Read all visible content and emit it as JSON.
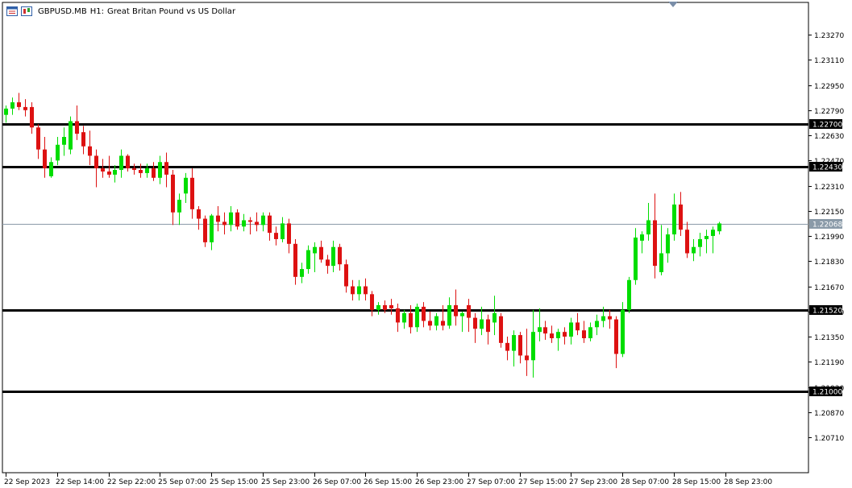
{
  "header": {
    "symbol": "GBPUSD.MB",
    "timeframe": "H1:",
    "description": "Great Britan Pound vs US Dollar"
  },
  "chart_data": {
    "type": "candlestick",
    "ylim": [
      1.2049,
      1.2347
    ],
    "y_ticks": [
      "1.23270",
      "1.23110",
      "1.22950",
      "1.22790",
      "1.22630",
      "1.22470",
      "1.22310",
      "1.22150",
      "1.21990",
      "1.21830",
      "1.21670",
      "1.21510",
      "1.21350",
      "1.21190",
      "1.21030",
      "1.20870",
      "1.20710"
    ],
    "x_tick_labels": [
      "22 Sep 2023",
      "22 Sep 14:00",
      "22 Sep 22:00",
      "25 Sep 07:00",
      "25 Sep 15:00",
      "25 Sep 23:00",
      "26 Sep 07:00",
      "26 Sep 15:00",
      "26 Sep 23:00",
      "27 Sep 07:00",
      "27 Sep 15:00",
      "27 Sep 23:00",
      "28 Sep 07:00",
      "28 Sep 15:00",
      "28 Sep 23:00"
    ],
    "horizontal_levels": [
      {
        "value": 1.227,
        "label": "1.22700",
        "style": "level"
      },
      {
        "value": 1.2243,
        "label": "1.22430",
        "style": "level"
      },
      {
        "value": 1.2152,
        "label": "1.21520",
        "style": "level"
      },
      {
        "value": 1.21,
        "label": "1.21000",
        "style": "level"
      },
      {
        "value": 1.22068,
        "label": "1.22068",
        "style": "bid"
      }
    ],
    "candles": [
      [
        1.2276,
        1.2282,
        1.2271,
        1.228
      ],
      [
        1.228,
        1.2287,
        1.2276,
        1.2284
      ],
      [
        1.2284,
        1.229,
        1.2279,
        1.2281
      ],
      [
        1.2281,
        1.2286,
        1.2275,
        1.2279
      ],
      [
        1.2281,
        1.2284,
        1.2264,
        1.2268
      ],
      [
        1.2268,
        1.227,
        1.2248,
        1.2254
      ],
      [
        1.2254,
        1.2262,
        1.2236,
        1.2242
      ],
      [
        1.2237,
        1.2249,
        1.2236,
        1.2246
      ],
      [
        1.2247,
        1.2262,
        1.2244,
        1.2257
      ],
      [
        1.2257,
        1.2268,
        1.225,
        1.2262
      ],
      [
        1.2254,
        1.2275,
        1.2251,
        1.2272
      ],
      [
        1.2272,
        1.2282,
        1.226,
        1.2264
      ],
      [
        1.2265,
        1.2269,
        1.2251,
        1.2256
      ],
      [
        1.2256,
        1.2266,
        1.2244,
        1.225
      ],
      [
        1.225,
        1.2254,
        1.223,
        1.2242
      ],
      [
        1.2242,
        1.2248,
        1.2236,
        1.224
      ],
      [
        1.224,
        1.225,
        1.2236,
        1.2238
      ],
      [
        1.2238,
        1.2244,
        1.2233,
        1.2241
      ],
      [
        1.2241,
        1.2254,
        1.2236,
        1.225
      ],
      [
        1.225,
        1.2251,
        1.224,
        1.2242
      ],
      [
        1.2242,
        1.2245,
        1.2238,
        1.2241
      ],
      [
        1.2241,
        1.2245,
        1.2236,
        1.2239
      ],
      [
        1.2239,
        1.2245,
        1.2236,
        1.2242
      ],
      [
        1.2242,
        1.2246,
        1.2234,
        1.2236
      ],
      [
        1.2236,
        1.225,
        1.2232,
        1.2246
      ],
      [
        1.2246,
        1.2252,
        1.223,
        1.2238
      ],
      [
        1.2238,
        1.2241,
        1.2206,
        1.2214
      ],
      [
        1.2214,
        1.2226,
        1.2206,
        1.2222
      ],
      [
        1.2226,
        1.2239,
        1.222,
        1.2236
      ],
      [
        1.2236,
        1.2242,
        1.221,
        1.2216
      ],
      [
        1.2216,
        1.2218,
        1.2203,
        1.221
      ],
      [
        1.221,
        1.2212,
        1.2192,
        1.2195
      ],
      [
        1.2195,
        1.2213,
        1.219,
        1.2212
      ],
      [
        1.2212,
        1.2218,
        1.2202,
        1.2208
      ],
      [
        1.2208,
        1.2214,
        1.22,
        1.2206
      ],
      [
        1.2206,
        1.2218,
        1.2202,
        1.2214
      ],
      [
        1.2214,
        1.2216,
        1.2203,
        1.2205
      ],
      [
        1.2205,
        1.2213,
        1.2202,
        1.2209
      ],
      [
        1.2209,
        1.2211,
        1.22,
        1.2208
      ],
      [
        1.2208,
        1.2214,
        1.2202,
        1.2206
      ],
      [
        1.2206,
        1.2214,
        1.2202,
        1.2212
      ],
      [
        1.2212,
        1.2214,
        1.2196,
        1.2201
      ],
      [
        1.2201,
        1.2205,
        1.2193,
        1.2197
      ],
      [
        1.2197,
        1.2211,
        1.2195,
        1.2207
      ],
      [
        1.2207,
        1.221,
        1.2188,
        1.2194
      ],
      [
        1.2194,
        1.2197,
        1.2168,
        1.2173
      ],
      [
        1.2173,
        1.2182,
        1.2169,
        1.2178
      ],
      [
        1.2178,
        1.2193,
        1.2175,
        1.219
      ],
      [
        1.2188,
        1.2195,
        1.2176,
        1.2192
      ],
      [
        1.2192,
        1.2196,
        1.2182,
        1.2184
      ],
      [
        1.2184,
        1.2187,
        1.2175,
        1.218
      ],
      [
        1.218,
        1.2196,
        1.2176,
        1.2192
      ],
      [
        1.2192,
        1.2194,
        1.2177,
        1.2181
      ],
      [
        1.2181,
        1.2184,
        1.2163,
        1.2167
      ],
      [
        1.2167,
        1.2171,
        1.2158,
        1.2162
      ],
      [
        1.2162,
        1.2171,
        1.2158,
        1.2167
      ],
      [
        1.2167,
        1.2172,
        1.2158,
        1.2162
      ],
      [
        1.2162,
        1.2164,
        1.2148,
        1.2152
      ],
      [
        1.2152,
        1.2157,
        1.2149,
        1.2155
      ],
      [
        1.2155,
        1.2158,
        1.215,
        1.2152
      ],
      [
        1.2155,
        1.2159,
        1.2149,
        1.2153
      ],
      [
        1.2153,
        1.2156,
        1.2138,
        1.2144
      ],
      [
        1.2144,
        1.2152,
        1.214,
        1.215
      ],
      [
        1.215,
        1.2155,
        1.2137,
        1.2141
      ],
      [
        1.2141,
        1.2156,
        1.2138,
        1.2154
      ],
      [
        1.2154,
        1.2157,
        1.2141,
        1.2145
      ],
      [
        1.2145,
        1.2151,
        1.2139,
        1.2142
      ],
      [
        1.2142,
        1.215,
        1.2139,
        1.2148
      ],
      [
        1.2145,
        1.2155,
        1.2139,
        1.2142
      ],
      [
        1.2142,
        1.216,
        1.214,
        1.2155
      ],
      [
        1.2155,
        1.2165,
        1.2142,
        1.2148
      ],
      [
        1.2148,
        1.2151,
        1.2138,
        1.215
      ],
      [
        1.2155,
        1.2159,
        1.2138,
        1.2147
      ],
      [
        1.2147,
        1.215,
        1.2131,
        1.214
      ],
      [
        1.214,
        1.2154,
        1.2136,
        1.2146
      ],
      [
        1.2146,
        1.2149,
        1.213,
        1.2138
      ],
      [
        1.2144,
        1.2161,
        1.2136,
        1.215
      ],
      [
        1.2148,
        1.215,
        1.2128,
        1.2131
      ],
      [
        1.2131,
        1.2135,
        1.212,
        1.2126
      ],
      [
        1.2126,
        1.2139,
        1.2116,
        1.2136
      ],
      [
        1.2136,
        1.2138,
        1.2118,
        1.2123
      ],
      [
        1.2123,
        1.214,
        1.211,
        1.212
      ],
      [
        1.212,
        1.2152,
        1.2109,
        1.2138
      ],
      [
        1.2138,
        1.2153,
        1.2132,
        1.2141
      ],
      [
        1.2141,
        1.2145,
        1.2133,
        1.2137
      ],
      [
        1.2137,
        1.2142,
        1.2131,
        1.2134
      ],
      [
        1.2134,
        1.214,
        1.2126,
        1.2138
      ],
      [
        1.2138,
        1.2141,
        1.213,
        1.2135
      ],
      [
        1.2135,
        1.2147,
        1.213,
        1.2144
      ],
      [
        1.2144,
        1.215,
        1.2136,
        1.2139
      ],
      [
        1.2139,
        1.2145,
        1.2131,
        1.2134
      ],
      [
        1.2134,
        1.2144,
        1.2132,
        1.2141
      ],
      [
        1.2141,
        1.2149,
        1.2136,
        1.2145
      ],
      [
        1.2145,
        1.2154,
        1.2141,
        1.2148
      ],
      [
        1.2148,
        1.2152,
        1.214,
        1.2146
      ],
      [
        1.2146,
        1.2148,
        1.2115,
        1.2124
      ],
      [
        1.2124,
        1.2157,
        1.2122,
        1.2152
      ],
      [
        1.2152,
        1.2173,
        1.215,
        1.2171
      ],
      [
        1.2171,
        1.2204,
        1.2168,
        1.2198
      ],
      [
        1.2196,
        1.2202,
        1.2188,
        1.22
      ],
      [
        1.22,
        1.222,
        1.2196,
        1.2209
      ],
      [
        1.2209,
        1.2226,
        1.2172,
        1.218
      ],
      [
        1.2176,
        1.2206,
        1.2174,
        1.2188
      ],
      [
        1.2188,
        1.2204,
        1.2182,
        1.22
      ],
      [
        1.22,
        1.2226,
        1.2196,
        1.2219
      ],
      [
        1.2219,
        1.2227,
        1.2199,
        1.2203
      ],
      [
        1.2203,
        1.2208,
        1.2185,
        1.2188
      ],
      [
        1.2188,
        1.2197,
        1.2183,
        1.2192
      ],
      [
        1.2192,
        1.2201,
        1.2186,
        1.2197
      ],
      [
        1.2197,
        1.2203,
        1.2188,
        1.2199
      ],
      [
        1.2199,
        1.2205,
        1.2188,
        1.2203
      ],
      [
        1.2202,
        1.2208,
        1.22,
        1.2207
      ]
    ]
  },
  "colors": {
    "bull": "#00dd00",
    "bear": "#dd1111",
    "level_line": "#000000",
    "bid_line": "#8a9aa8",
    "bid_label_bg": "#8a9aa8",
    "grid_text": "#000000",
    "marker": "#7a8ea8"
  }
}
